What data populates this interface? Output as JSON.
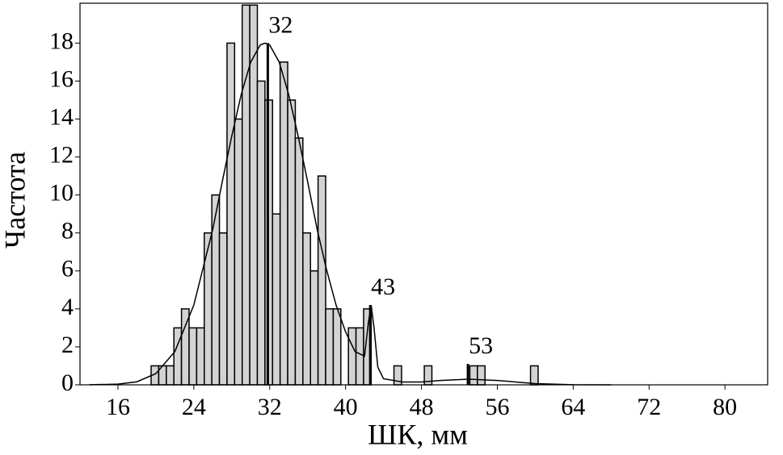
{
  "chart_data": {
    "type": "histogram",
    "xlabel": "ШК, мм",
    "ylabel": "Частота",
    "bins": [
      19.5,
      20.3,
      21.1,
      21.9,
      22.7,
      23.5,
      24.3,
      25.1,
      25.9,
      26.7,
      27.5,
      28.3,
      29.1,
      29.9,
      30.7,
      31.5,
      32.3,
      33.1,
      33.9,
      34.7,
      35.5,
      36.3,
      37.1,
      37.9,
      38.7,
      39.5,
      40.3,
      41.1,
      41.9,
      42.7,
      43.5,
      44.3,
      45.1,
      45.9,
      46.7,
      47.5,
      48.3,
      49.1,
      49.9,
      50.7,
      51.5,
      52.3,
      53.1,
      53.9,
      54.7,
      55.5,
      56.3,
      57.1,
      57.9,
      58.7,
      59.5,
      60.3
    ],
    "values": [
      1,
      1,
      1,
      3,
      4,
      3,
      3,
      8,
      10,
      8,
      18,
      14,
      20,
      20,
      16,
      15,
      9,
      17,
      15,
      13,
      8,
      6,
      11,
      4,
      4,
      0,
      3,
      3,
      4,
      0,
      0,
      0,
      1,
      0,
      0,
      0,
      1,
      0,
      0,
      0,
      0,
      0,
      1,
      1,
      0,
      0,
      0,
      0,
      0,
      0,
      1
    ],
    "color": "#d3d3d3",
    "curve": {
      "x": [
        13,
        16,
        18,
        20,
        22,
        24,
        26,
        27,
        28,
        29,
        30,
        31,
        31.5,
        32,
        33,
        34,
        35,
        36,
        37,
        38,
        39,
        40,
        41,
        42,
        42.4,
        42.7,
        43,
        43.4,
        44,
        46,
        48,
        50,
        53,
        56,
        60,
        64,
        68
      ],
      "y": [
        0.003,
        0.036,
        0.16,
        0.59,
        1.75,
        4.2,
        8.2,
        10.7,
        13.1,
        15.3,
        17.0,
        17.9,
        18,
        17.9,
        17.0,
        15.3,
        13.1,
        10.7,
        8.2,
        6.05,
        4.2,
        2.79,
        1.75,
        1.51,
        3.27,
        4.2,
        3.0,
        0.93,
        0.32,
        0.15,
        0.15,
        0.23,
        0.3,
        0.23,
        0.065,
        0.007,
        0
      ]
    },
    "annotations": [
      {
        "text": "32",
        "x": 31.8,
        "y": 18
      },
      {
        "text": "43",
        "x": 42.6,
        "y": 4.2
      },
      {
        "text": "53",
        "x": 52.9,
        "y": 1.1
      }
    ],
    "xlim": [
      12,
      84.5
    ],
    "ylim": [
      0,
      20.1
    ],
    "xticks": [
      16,
      24,
      32,
      40,
      48,
      56,
      64,
      72,
      80
    ],
    "yticks": [
      0,
      2,
      4,
      6,
      8,
      10,
      12,
      14,
      16,
      18
    ]
  }
}
